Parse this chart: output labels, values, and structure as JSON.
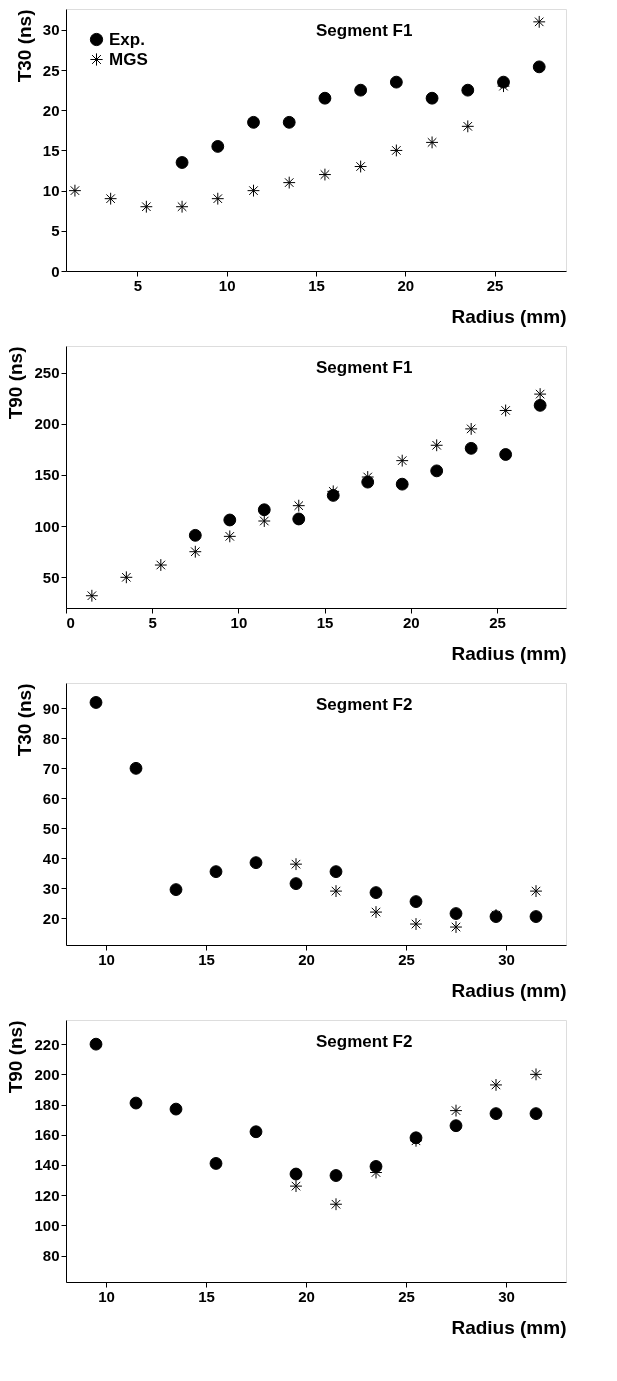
{
  "chart_data": [
    {
      "type": "scatter",
      "annotations": [
        "Segment F1"
      ],
      "xlabel": "Radius (mm)",
      "ylabel": "T30 (ns)",
      "xlim": [
        1,
        29
      ],
      "ylim": [
        0,
        32.6
      ],
      "xticks": [
        5,
        10,
        15,
        20,
        25
      ],
      "yticks": [
        0,
        5,
        10,
        15,
        20,
        25,
        30
      ],
      "legend": "top left",
      "grid": false,
      "series": [
        {
          "name": "Exp.",
          "color": "#000000",
          "marker": "circle",
          "x": [
            7.5,
            9.5,
            11.5,
            13.5,
            15.5,
            17.5,
            19.5,
            21.5,
            23.5,
            25.5,
            27.5
          ],
          "values": [
            13.5,
            15.5,
            18.5,
            18.5,
            21.5,
            22.5,
            23.5,
            21.5,
            22.5,
            23.5,
            25.4
          ]
        },
        {
          "name": "MGS",
          "color": "#000000",
          "marker": "cross",
          "x": [
            1.5,
            3.5,
            5.5,
            7.5,
            9.5,
            11.5,
            13.5,
            15.5,
            17.5,
            19.5,
            21.5,
            23.5,
            25.5,
            27.5
          ],
          "values": [
            10,
            9,
            8,
            8,
            9,
            10,
            11,
            12,
            13,
            15,
            16,
            18,
            23,
            31
          ]
        }
      ]
    },
    {
      "type": "scatter",
      "annotations": [
        "Segment F1"
      ],
      "xlabel": "Radius (mm)",
      "ylabel": "T90 (ns)",
      "xlim": [
        0,
        29
      ],
      "ylim": [
        20,
        276
      ],
      "xticks": [
        0,
        5,
        10,
        15,
        20,
        25
      ],
      "yticks": [
        50,
        100,
        150,
        200,
        250
      ],
      "grid": false,
      "series": [
        {
          "color": "#000000",
          "marker": "circle",
          "x": [
            7.5,
            9.5,
            11.5,
            13.5,
            15.5,
            17.5,
            19.5,
            21.5,
            23.5,
            25.5,
            27.5
          ],
          "values": [
            91,
            106,
            116,
            107,
            130,
            143,
            141,
            154,
            176,
            170,
            218
          ]
        },
        {
          "color": "#000000",
          "marker": "cross",
          "x": [
            1.5,
            3.5,
            5.5,
            7.5,
            9.5,
            11.5,
            13.5,
            15.5,
            17.5,
            19.5,
            21.5,
            23.5,
            25.5,
            27.5
          ],
          "values": [
            32,
            50,
            62,
            75,
            90,
            105,
            120,
            134,
            148,
            164,
            179,
            195,
            213,
            229
          ]
        }
      ]
    },
    {
      "type": "scatter",
      "annotations": [
        "Segment F2"
      ],
      "xlabel": "Radius (mm)",
      "ylabel": "T30 (ns)",
      "xlim": [
        8,
        33
      ],
      "ylim": [
        11,
        98.5
      ],
      "xticks": [
        10,
        15,
        20,
        25,
        30
      ],
      "yticks": [
        20,
        30,
        40,
        50,
        60,
        70,
        80,
        90
      ],
      "grid": false,
      "series": [
        {
          "color": "#000000",
          "marker": "circle",
          "x": [
            9.5,
            11.5,
            13.5,
            15.5,
            17.5,
            19.5,
            21.5,
            23.5,
            25.5,
            27.5,
            29.5,
            31.5
          ],
          "values": [
            92,
            70,
            29.5,
            35.5,
            38.5,
            31.5,
            35.5,
            28.5,
            25.5,
            21.5,
            20.5,
            20.5
          ]
        },
        {
          "color": "#000000",
          "marker": "cross",
          "x": [
            19.5,
            21.5,
            23.5,
            25.5,
            27.5,
            29.5,
            31.5
          ],
          "values": [
            38,
            29,
            22,
            18,
            17,
            21,
            29
          ]
        }
      ]
    },
    {
      "type": "scatter",
      "annotations": [
        "Segment F2"
      ],
      "xlabel": "Radius (mm)",
      "ylabel": "T90 (ns)",
      "xlim": [
        8,
        33
      ],
      "ylim": [
        62.5,
        236
      ],
      "xticks": [
        10,
        15,
        20,
        25,
        30
      ],
      "yticks": [
        80,
        100,
        120,
        140,
        160,
        180,
        200,
        220
      ],
      "grid": false,
      "series": [
        {
          "color": "#000000",
          "marker": "circle",
          "x": [
            9.5,
            11.5,
            13.5,
            15.5,
            17.5,
            19.5,
            21.5,
            23.5,
            25.5,
            27.5,
            29.5,
            31.5
          ],
          "values": [
            220,
            181,
            177,
            141,
            162,
            134,
            133,
            139,
            158,
            166,
            174,
            174
          ]
        },
        {
          "color": "#000000",
          "marker": "cross",
          "x": [
            19.5,
            21.5,
            23.5,
            25.5,
            27.5,
            29.5,
            31.5
          ],
          "values": [
            126,
            114,
            135,
            156,
            176,
            193,
            200
          ]
        }
      ]
    }
  ]
}
